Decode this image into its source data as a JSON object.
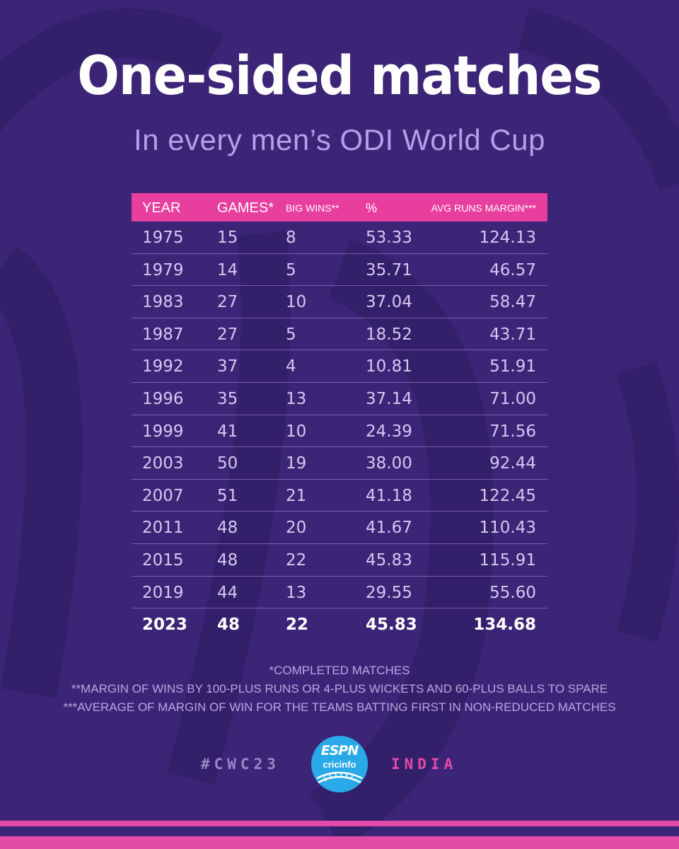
{
  "title": "One-sided matches",
  "subtitle": "In every men’s ODI World Cup",
  "colors": {
    "background": "#3c2577",
    "accent_pink": "#e83e9e",
    "header_text": "#ffffff",
    "cell_text": "#d4c8f2",
    "logo_blue": "#29a9e8"
  },
  "chart_data": {
    "type": "table",
    "columns": [
      "YEAR",
      "GAMES*",
      "BIG WINS**",
      "%",
      "AVG RUNS MARGIN***"
    ],
    "rows": [
      [
        "1975",
        "15",
        "8",
        "53.33",
        "124.13"
      ],
      [
        "1979",
        "14",
        "5",
        "35.71",
        "46.57"
      ],
      [
        "1983",
        "27",
        "10",
        "37.04",
        "58.47"
      ],
      [
        "1987",
        "27",
        "5",
        "18.52",
        "43.71"
      ],
      [
        "1992",
        "37",
        "4",
        "10.81",
        "51.91"
      ],
      [
        "1996",
        "35",
        "13",
        "37.14",
        "71.00"
      ],
      [
        "1999",
        "41",
        "10",
        "24.39",
        "71.56"
      ],
      [
        "2003",
        "50",
        "19",
        "38.00",
        "92.44"
      ],
      [
        "2007",
        "51",
        "21",
        "41.18",
        "122.45"
      ],
      [
        "2011",
        "48",
        "20",
        "41.67",
        "110.43"
      ],
      [
        "2015",
        "48",
        "22",
        "45.83",
        "115.91"
      ],
      [
        "2019",
        "44",
        "13",
        "29.55",
        "55.60"
      ],
      [
        "2023",
        "48",
        "22",
        "45.83",
        "134.68"
      ]
    ]
  },
  "footnotes": [
    "*COMPLETED MATCHES",
    "**MARGIN OF WINS BY 100-PLUS RUNS OR 4-PLUS WICKETS AND 60-PLUS BALLS TO SPARE",
    "***AVERAGE OF MARGIN OF WIN FOR THE TEAMS BATTING FIRST IN NON-REDUCED MATCHES"
  ],
  "footer": {
    "hashtag": "#CWC23",
    "logo_line1": "ESPN",
    "logo_line2": "cricinfo",
    "logo_icon": "cricket-ball-icon",
    "edition": "INDIA"
  }
}
